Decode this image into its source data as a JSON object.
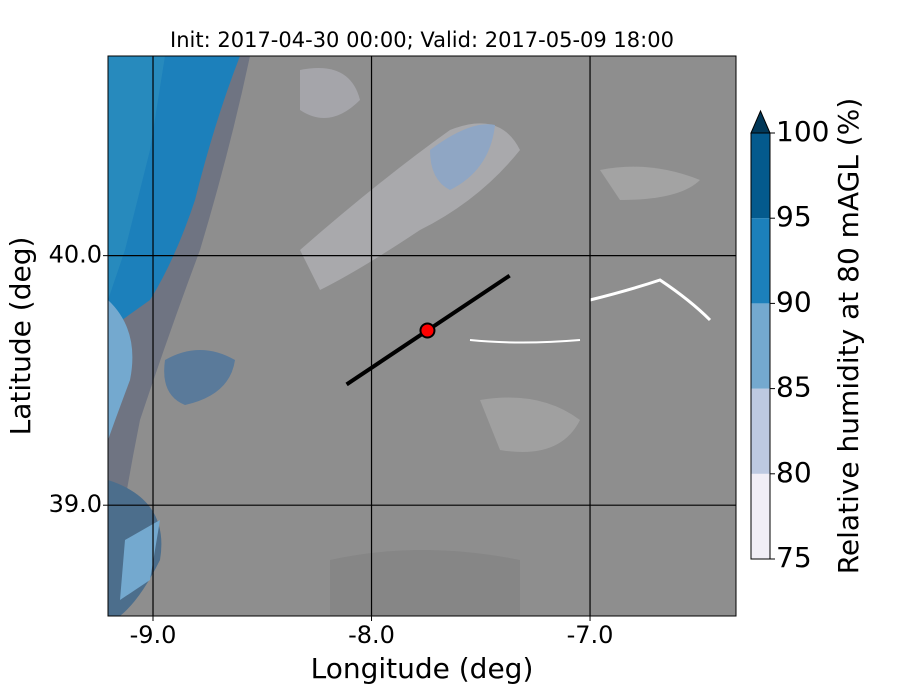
{
  "chart_data": {
    "type": "map",
    "title": "Init: 2017-04-30 00:00; Valid: 2017-05-09 18:00",
    "x_label": "Longitude (deg)",
    "y_label": "Latitude (deg)",
    "xlim": [
      -9.206,
      -6.332
    ],
    "ylim": [
      38.556,
      40.8
    ],
    "xticks": [
      {
        "value": -9,
        "label": "-9.0"
      },
      {
        "value": -8,
        "label": "-8.0"
      },
      {
        "value": -7,
        "label": "-7.0"
      }
    ],
    "yticks": [
      {
        "value": 39,
        "label": "39.0"
      },
      {
        "value": 40,
        "label": "40.0"
      }
    ],
    "grid": true,
    "cross_section": {
      "lon": [
        -8.114,
        -7.368
      ],
      "lat": [
        39.484,
        39.92
      ],
      "color": "#000000"
    },
    "point": {
      "lon": -7.744,
      "lat": 39.7,
      "color": "#ff0000"
    },
    "colorbar": {
      "label": "Relative humidity at 80 mAGL (%)",
      "levels": [
        75,
        80,
        85,
        90,
        95,
        100
      ],
      "colors": [
        "#f1eef6",
        "#bdc9e1",
        "#74a9cf",
        "#1c80bb",
        "#045a8d"
      ],
      "extend_color": "#023858",
      "ticks": [
        75,
        80,
        85,
        90,
        95,
        100
      ]
    }
  }
}
